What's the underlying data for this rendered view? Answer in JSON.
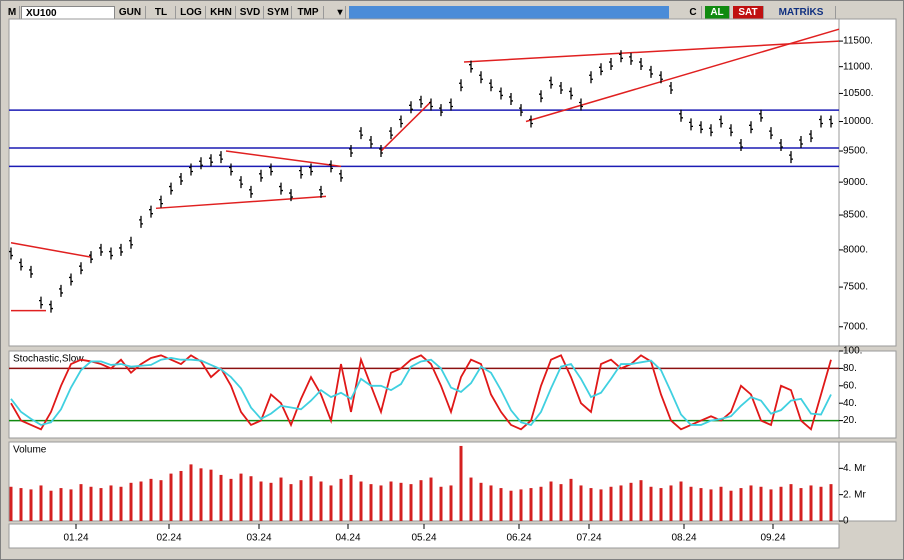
{
  "toolbar": {
    "menu": "M",
    "symbol": "XU100",
    "buttons": [
      "GUN",
      "TL",
      "LOG",
      "KHN",
      "SVD",
      "SYM",
      "TMP"
    ],
    "right": [
      "C",
      "AL",
      "SAT",
      "MATRİKS"
    ]
  },
  "chart_data": [
    {
      "type": "price-bars",
      "log": true,
      "color": "#000000",
      "values": [
        7950,
        7800,
        7700,
        7300,
        7250,
        7450,
        7600,
        7750,
        7900,
        8000,
        7950,
        8000,
        8100,
        8400,
        8550,
        8700,
        8900,
        9050,
        9200,
        9300,
        9350,
        9400,
        9200,
        9000,
        8850,
        9100,
        9200,
        8900,
        8800,
        9150,
        9200,
        8850,
        9250,
        9100,
        9500,
        9800,
        9650,
        9500,
        9800,
        10000,
        10250,
        10350,
        10300,
        10200,
        10300,
        10650,
        11000,
        10800,
        10650,
        10500,
        10400,
        10200,
        10000,
        10450,
        10700,
        10600,
        10500,
        10300,
        10800,
        10950,
        11050,
        11200,
        11150,
        11050,
        10900,
        10800,
        10600,
        10100,
        9950,
        9900,
        9850,
        10000,
        9850,
        9600,
        9900,
        10100,
        9800,
        9600,
        9400,
        9650,
        9750,
        10000,
        10000
      ],
      "xlim": [
        -0.2,
        82.8
      ],
      "xticks": [
        {
          "value": 6.5,
          "label": "01.24"
        },
        {
          "value": 15.8,
          "label": "02.24"
        },
        {
          "value": 24.8,
          "label": "03.24"
        },
        {
          "value": 33.7,
          "label": "04.24"
        },
        {
          "value": 41.3,
          "label": "05.24"
        },
        {
          "value": 50.8,
          "label": "06.24"
        },
        {
          "value": 57.8,
          "label": "07.24"
        },
        {
          "value": 67.3,
          "label": "08.24"
        },
        {
          "value": 76.2,
          "label": "09.24"
        }
      ],
      "ylim": [
        6770,
        11950
      ],
      "yticks": [
        {
          "value": 11500,
          "label": "11500."
        },
        {
          "value": 11000,
          "label": "11000."
        },
        {
          "value": 10500,
          "label": "10500."
        },
        {
          "value": 10000,
          "label": "10000."
        },
        {
          "value": 9500,
          "label": "9500."
        },
        {
          "value": 9000,
          "label": "9000."
        },
        {
          "value": 8500,
          "label": "8500."
        },
        {
          "value": 8000,
          "label": "8000."
        },
        {
          "value": 7500,
          "label": "7500."
        },
        {
          "value": 7000,
          "label": "7000."
        }
      ],
      "hlines": [
        {
          "value": 10200,
          "color": "#1c1cb4"
        },
        {
          "value": 9550,
          "color": "#1c1cb4"
        },
        {
          "value": 9250,
          "color": "#1c1cb4"
        }
      ],
      "trend_color": "#e02020",
      "trendlines": [
        {
          "points": [
            [
              0,
              8100
            ],
            [
              8,
              7900
            ]
          ]
        },
        {
          "points": [
            [
              0,
              7200
            ],
            [
              3.5,
              7200
            ]
          ]
        },
        {
          "points": [
            [
              14.5,
              8600
            ],
            [
              31.5,
              8780
            ]
          ]
        },
        {
          "points": [
            [
              21.5,
              9500
            ],
            [
              33,
              9250
            ]
          ]
        },
        {
          "points": [
            [
              37,
              9500
            ],
            [
              42,
              10350
            ]
          ]
        },
        {
          "points": [
            [
              45.3,
              11090
            ],
            [
              82.8,
              11500
            ]
          ]
        },
        {
          "points": [
            [
              51.5,
              10000
            ],
            [
              82.8,
              11740
            ]
          ]
        }
      ]
    },
    {
      "type": "line",
      "title": "Stochastic,Slow",
      "xlim": [
        -0.2,
        82.8
      ],
      "ylim": [
        0,
        100
      ],
      "yticks": [
        {
          "value": 100,
          "label": "100."
        },
        {
          "value": 80,
          "label": "80."
        },
        {
          "value": 60,
          "label": "60."
        },
        {
          "value": 40,
          "label": "40."
        },
        {
          "value": 20,
          "label": "20."
        }
      ],
      "levels": [
        {
          "value": 80,
          "color": "#8b1010"
        },
        {
          "value": 20,
          "color": "#108a10"
        }
      ],
      "series": [
        {
          "color": "#e01818",
          "values": [
            40,
            20,
            15,
            10,
            30,
            60,
            85,
            90,
            88,
            85,
            80,
            90,
            75,
            85,
            92,
            95,
            90,
            85,
            95,
            88,
            70,
            80,
            60,
            30,
            15,
            20,
            50,
            40,
            15,
            45,
            70,
            50,
            20,
            85,
            30,
            90,
            60,
            30,
            75,
            80,
            90,
            95,
            85,
            60,
            30,
            70,
            90,
            85,
            50,
            30,
            15,
            10,
            20,
            60,
            90,
            95,
            70,
            40,
            30,
            85,
            90,
            80,
            85,
            95,
            88,
            50,
            20,
            10,
            15,
            20,
            25,
            20,
            30,
            60,
            50,
            20,
            15,
            60,
            55,
            20,
            10,
            50,
            90
          ]
        },
        {
          "color": "#40d0e0",
          "values": [
            45,
            30,
            22,
            15,
            18,
            33,
            58,
            78,
            88,
            88,
            84,
            85,
            82,
            83,
            84,
            90,
            92,
            90,
            90,
            89,
            84,
            79,
            70,
            57,
            35,
            22,
            28,
            37,
            35,
            33,
            43,
            55,
            47,
            52,
            45,
            68,
            60,
            60,
            55,
            62,
            82,
            88,
            90,
            80,
            58,
            53,
            63,
            82,
            75,
            55,
            32,
            18,
            15,
            30,
            57,
            82,
            85,
            68,
            47,
            52,
            68,
            85,
            85,
            87,
            89,
            78,
            53,
            27,
            15,
            15,
            20,
            22,
            25,
            37,
            47,
            43,
            28,
            32,
            43,
            45,
            28,
            27,
            50
          ]
        }
      ]
    },
    {
      "type": "bar",
      "title": "Volume",
      "color": "#d42020",
      "xlim": [
        -0.2,
        82.8
      ],
      "ylim": [
        0,
        6
      ],
      "yticks": [
        {
          "value": 4,
          "label": "4. Mr"
        },
        {
          "value": 2,
          "label": "2. Mr"
        },
        0
      ],
      "values": [
        2.6,
        2.5,
        2.4,
        2.7,
        2.3,
        2.5,
        2.4,
        2.8,
        2.6,
        2.5,
        2.7,
        2.6,
        2.9,
        3.0,
        3.2,
        3.1,
        3.6,
        3.8,
        4.3,
        4.0,
        3.9,
        3.5,
        3.2,
        3.6,
        3.4,
        3.0,
        2.9,
        3.3,
        2.8,
        3.1,
        3.4,
        3.0,
        2.7,
        3.2,
        3.5,
        3.0,
        2.8,
        2.7,
        3.0,
        2.9,
        2.8,
        3.1,
        3.3,
        2.6,
        2.7,
        5.7,
        3.3,
        2.9,
        2.7,
        2.5,
        2.3,
        2.4,
        2.5,
        2.6,
        3.0,
        2.8,
        3.2,
        2.7,
        2.5,
        2.4,
        2.6,
        2.7,
        2.9,
        3.1,
        2.6,
        2.5,
        2.7,
        3.0,
        2.6,
        2.5,
        2.4,
        2.6,
        2.3,
        2.5,
        2.7,
        2.6,
        2.4,
        2.6,
        2.8,
        2.5,
        2.7,
        2.6,
        2.8
      ]
    }
  ]
}
